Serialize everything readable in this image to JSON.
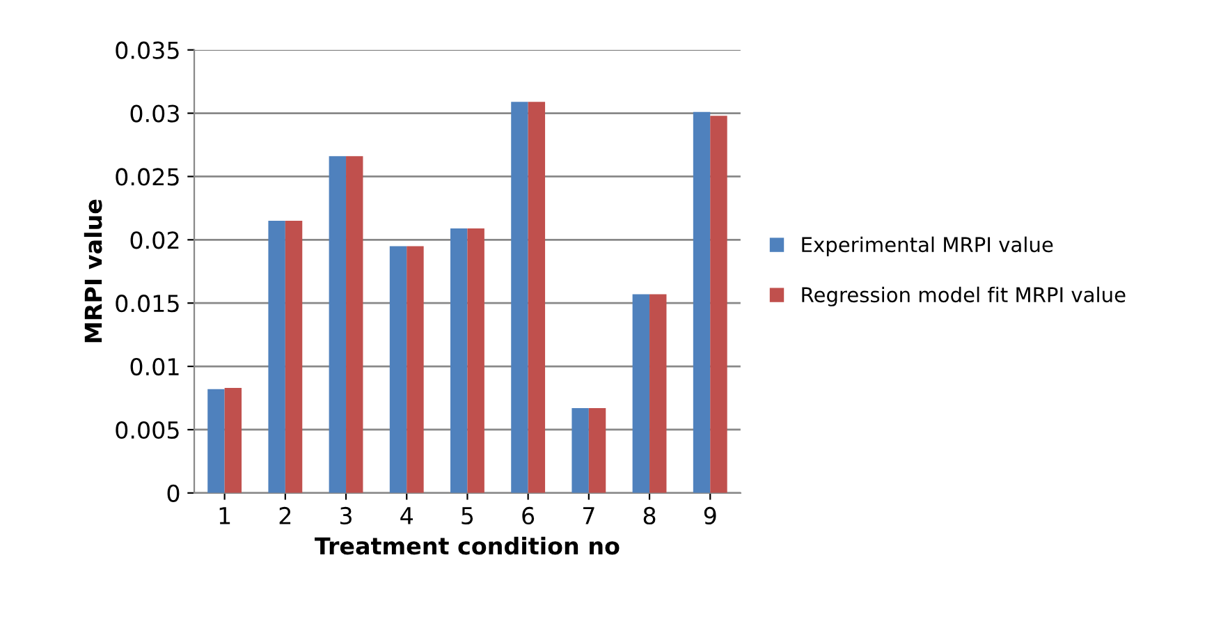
{
  "chart_data": {
    "type": "bar",
    "xlabel": "Treatment condition no",
    "ylabel": "MRPI value",
    "categories": [
      "1",
      "2",
      "3",
      "4",
      "5",
      "6",
      "7",
      "8",
      "9"
    ],
    "series": [
      {
        "name": "Experimental MRPI value",
        "color": "#4f81bd",
        "values": [
          0.0082,
          0.0215,
          0.0266,
          0.0195,
          0.0209,
          0.0309,
          0.0067,
          0.0157,
          0.0301
        ]
      },
      {
        "name": "Regression model fit MRPI value",
        "color": "#c0504d",
        "values": [
          0.0083,
          0.0215,
          0.0266,
          0.0195,
          0.0209,
          0.0309,
          0.0067,
          0.0157,
          0.0298
        ]
      }
    ],
    "ylim": [
      0,
      0.035
    ],
    "yticks": [
      0,
      0.005,
      0.01,
      0.015,
      0.02,
      0.025,
      0.03,
      0.035
    ],
    "grid": "y",
    "legend": "right"
  }
}
